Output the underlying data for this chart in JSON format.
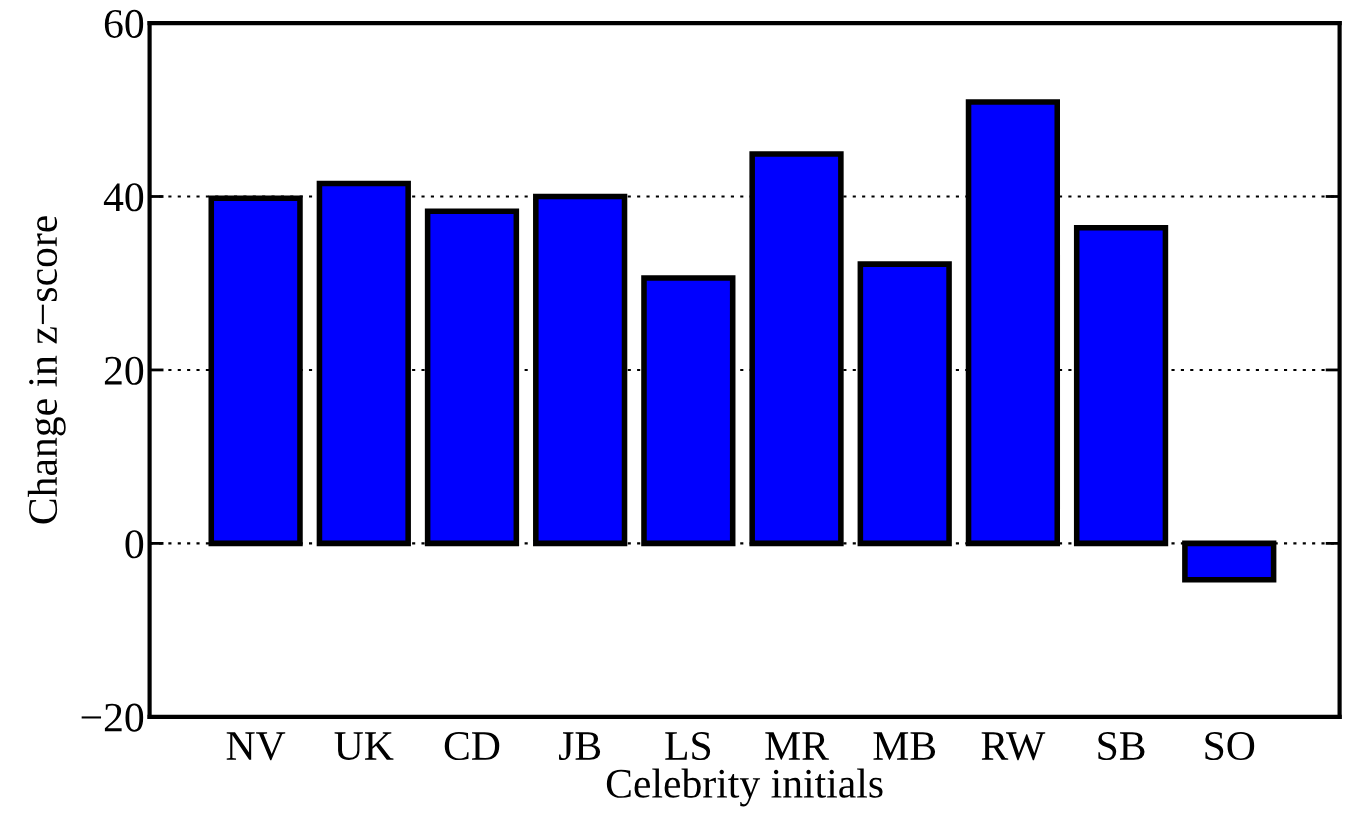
{
  "chart_data": {
    "type": "bar",
    "xlabel": "Celebrity initials",
    "ylabel": "Change in z−score",
    "categories": [
      "NV",
      "UK",
      "CD",
      "JB",
      "LS",
      "MR",
      "MB",
      "RW",
      "SB",
      "SO"
    ],
    "values": [
      39.8,
      41.5,
      38.3,
      40.0,
      30.6,
      44.9,
      32.2,
      50.9,
      36.4,
      -4.2
    ],
    "color": "#0000ff",
    "ylim": [
      -20,
      60
    ],
    "yticks": [
      -20,
      0,
      20,
      40,
      60
    ],
    "grid": "y"
  }
}
